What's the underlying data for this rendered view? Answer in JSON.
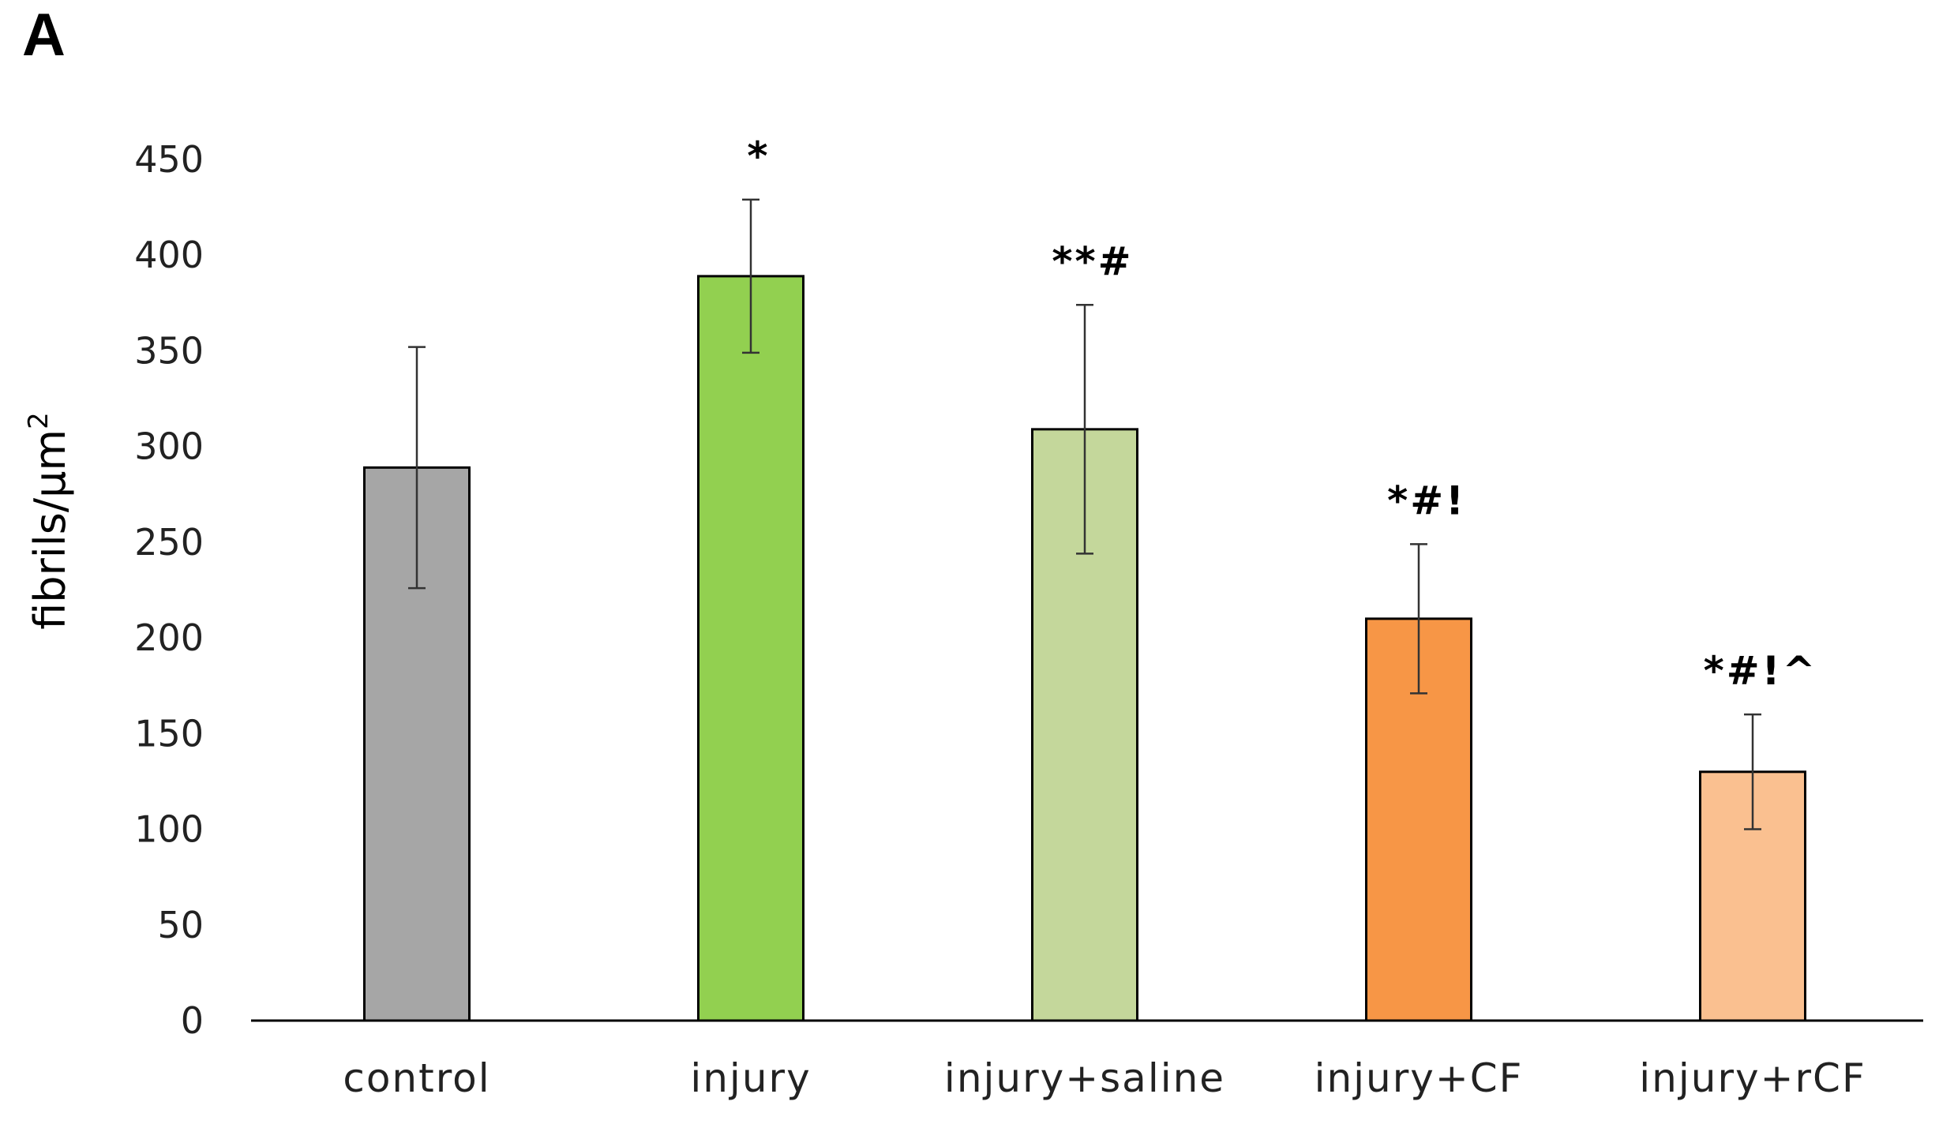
{
  "panel_label": "A",
  "chart_data": {
    "type": "bar",
    "title": "",
    "xlabel": "",
    "ylabel": "fibrils/µm",
    "ylabel_superscript": "2",
    "categories": [
      "control",
      "injury",
      "injury+saline",
      "injury+CF",
      "injury+rCF"
    ],
    "values": [
      289,
      389,
      309,
      210,
      130
    ],
    "errors": [
      63,
      40,
      65,
      39,
      30
    ],
    "annotations": [
      "",
      "*",
      "**#",
      "*#!",
      "*#!^"
    ],
    "colors": [
      "#a6a6a6",
      "#92d050",
      "#c4d79b",
      "#f79646",
      "#fac090"
    ],
    "ylim": [
      0,
      450
    ],
    "yticks": [
      0,
      50,
      100,
      150,
      200,
      250,
      300,
      350,
      400,
      450
    ],
    "grid": false,
    "legend": "none"
  }
}
